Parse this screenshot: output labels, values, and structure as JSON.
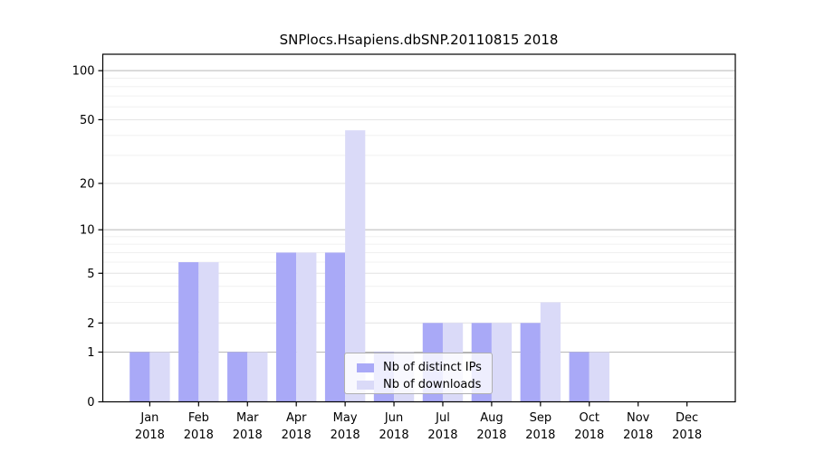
{
  "chart_data": {
    "type": "bar",
    "title": "SNPlocs.Hsapiens.dbSNP.20110815 2018",
    "categories": [
      "Jan",
      "Feb",
      "Mar",
      "Apr",
      "May",
      "Jun",
      "Jul",
      "Aug",
      "Sep",
      "Oct",
      "Nov",
      "Dec"
    ],
    "year_label": "2018",
    "series": [
      {
        "name": "Nb of distinct IPs",
        "color": "#a9a9f7",
        "values": [
          1,
          6,
          1,
          7,
          7,
          1,
          2,
          2,
          2,
          1,
          0,
          0
        ]
      },
      {
        "name": "Nb of downloads",
        "color": "#dadaf8",
        "values": [
          1,
          6,
          1,
          7,
          43,
          1,
          2,
          2,
          3,
          1,
          0,
          0
        ]
      }
    ],
    "y_scale": "log1p",
    "y_axis_max": 126,
    "y_ticks_major": [
      0,
      1,
      2,
      5,
      10,
      20,
      50,
      100
    ],
    "y_ticks_minor": [
      3,
      4,
      6,
      7,
      8,
      9,
      30,
      40,
      60,
      70,
      80,
      90
    ],
    "grid": true,
    "legend_position": "inside-bottom-center",
    "colors": {
      "axis": "#000000",
      "tick_text": "#000000",
      "grid_decade": "#b8b8b8",
      "grid_major": "#e2e2e2",
      "grid_minor": "#f0f0f0"
    }
  }
}
